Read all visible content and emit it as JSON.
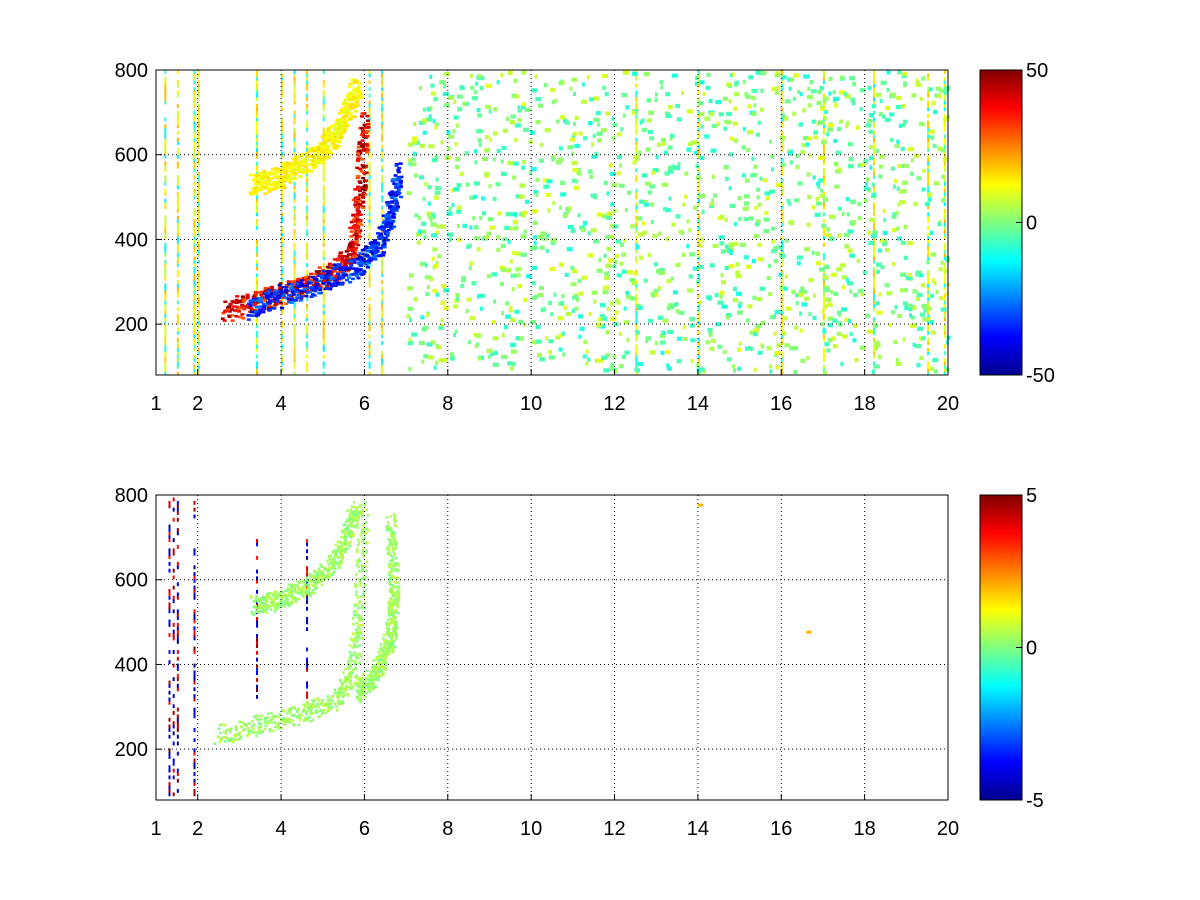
{
  "chart_data": [
    {
      "type": "heatmap",
      "title": "",
      "xlabel": "",
      "ylabel": "",
      "xlim": [
        1,
        20
      ],
      "ylim": [
        80,
        800
      ],
      "x_ticks": [
        1,
        2,
        4,
        6,
        8,
        10,
        12,
        14,
        16,
        18,
        20
      ],
      "y_ticks": [
        200,
        400,
        600,
        800
      ],
      "grid": true,
      "colorbar": {
        "range": [
          -50,
          50
        ],
        "tick_labels": [
          "50",
          "0",
          "-50"
        ],
        "colormap": "jet"
      },
      "features": [
        {
          "name": "lower positive band",
          "points": [
            [
              2.6,
              225
            ],
            [
              3.5,
              255
            ],
            [
              4.5,
              285
            ],
            [
              5.3,
              320
            ],
            [
              5.7,
              380
            ],
            [
              5.85,
              500
            ],
            [
              5.95,
              680
            ]
          ],
          "value": 45
        },
        {
          "name": "negative band",
          "points": [
            [
              3.2,
              230
            ],
            [
              4.0,
              265
            ],
            [
              5.0,
              300
            ],
            [
              5.8,
              330
            ],
            [
              6.3,
              380
            ],
            [
              6.6,
              460
            ],
            [
              6.8,
              560
            ]
          ],
          "value": -40
        },
        {
          "name": "upper positive arc",
          "points": [
            [
              3.3,
              525
            ],
            [
              4.0,
              545
            ],
            [
              4.8,
              590
            ],
            [
              5.4,
              660
            ],
            [
              5.8,
              760
            ]
          ],
          "value": 15
        },
        {
          "name": "scattered noise",
          "x_range": [
            7,
            20
          ],
          "value_range": [
            -10,
            10
          ]
        }
      ],
      "vertical_streaks_x": [
        1.2,
        1.5,
        1.9,
        2.0,
        3.4,
        4.0,
        4.3,
        4.6,
        5.0,
        6.1,
        6.4,
        12.5,
        14.0,
        16.0,
        17.0,
        18.2,
        19.5,
        19.9
      ]
    },
    {
      "type": "heatmap",
      "title": "",
      "xlabel": "",
      "ylabel": "",
      "xlim": [
        1,
        20
      ],
      "ylim": [
        80,
        800
      ],
      "x_ticks": [
        1,
        2,
        4,
        6,
        8,
        10,
        12,
        14,
        16,
        18,
        20
      ],
      "y_ticks": [
        200,
        400,
        600,
        800
      ],
      "grid": true,
      "colorbar": {
        "range": [
          -5,
          5
        ],
        "tick_labels": [
          "5",
          "0",
          "-5"
        ],
        "colormap": "jet"
      },
      "features": [
        {
          "name": "lower band",
          "points": [
            [
              2.5,
              230
            ],
            [
              3.5,
              255
            ],
            [
              4.5,
              280
            ],
            [
              5.3,
              310
            ],
            [
              5.7,
              380
            ],
            [
              5.85,
              520
            ],
            [
              5.95,
              760
            ]
          ],
          "value": 0.3
        },
        {
          "name": "outer band",
          "points": [
            [
              5.8,
              330
            ],
            [
              6.3,
              380
            ],
            [
              6.6,
              460
            ],
            [
              6.7,
              560
            ],
            [
              6.6,
              740
            ]
          ],
          "value": 0.3
        },
        {
          "name": "upper arc",
          "points": [
            [
              3.3,
              535
            ],
            [
              4.0,
              550
            ],
            [
              4.8,
              590
            ],
            [
              5.4,
              660
            ],
            [
              5.8,
              770
            ]
          ],
          "value": 0.3
        },
        {
          "name": "isolated point",
          "x": 14.0,
          "y": 775,
          "value": 2
        },
        {
          "name": "isolated point",
          "x": 16.6,
          "y": 475,
          "value": 2
        }
      ],
      "vertical_streaks_x": [
        1.3,
        1.4,
        1.5,
        1.9,
        3.4,
        4.6
      ]
    }
  ]
}
